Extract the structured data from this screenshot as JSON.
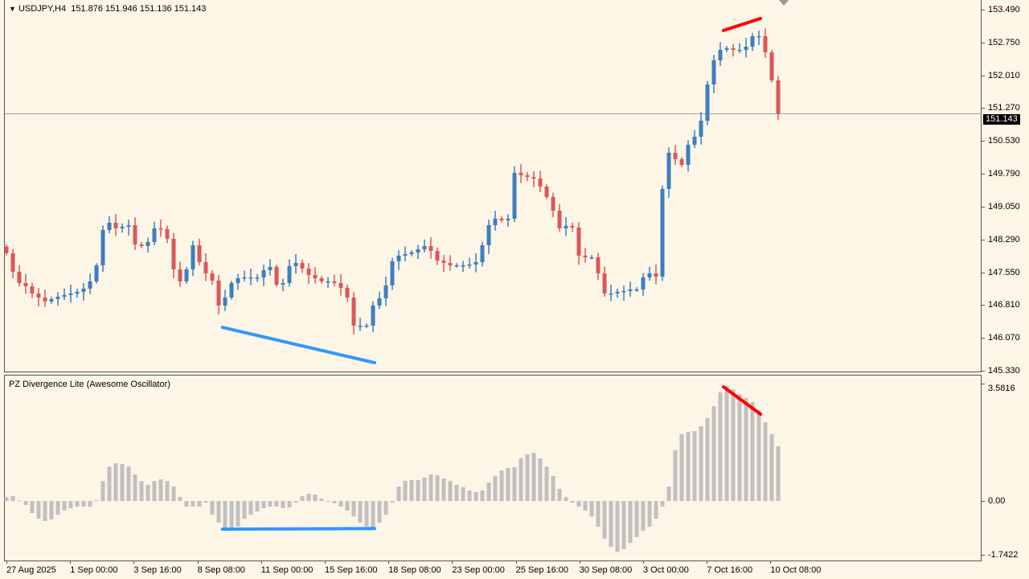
{
  "symbol_header": {
    "arrow_icon": "triangle-down-icon",
    "text": "USDJPY,H4  151.876 151.946 151.136 151.143"
  },
  "indicator_title": "PZ Divergence Lite (Awesome Oscillator)",
  "current_price": "151.143",
  "colors": {
    "background": "#fdf5e6",
    "bull": "#3d7ebf",
    "bear": "#d9585a",
    "bull_divergence": "#2f97ff",
    "bear_divergence": "#ff0000",
    "histogram": "#c0c0c0",
    "price_line": "#a0a0a0"
  },
  "price_axis": {
    "labels": [
      "153.490",
      "152.750",
      "152.010",
      "151.270",
      "150.530",
      "149.790",
      "149.050",
      "148.290",
      "147.550",
      "146.810",
      "146.070",
      "145.330"
    ],
    "range": [
      145.33,
      153.49
    ]
  },
  "ao_axis": {
    "labels": [
      "3.5816",
      "0.00",
      "-1.7422"
    ],
    "range": [
      -1.7422,
      3.5816
    ]
  },
  "time_axis": [
    "27 Aug 2025",
    "1 Sep 00:00",
    "3 Sep 16:00",
    "8 Sep 08:00",
    "11 Sep 00:00",
    "15 Sep 16:00",
    "18 Sep 08:00",
    "23 Sep 00:00",
    "25 Sep 16:00",
    "30 Sep 08:00",
    "3 Oct 00:00",
    "7 Oct 16:00",
    "10 Oct 08:00"
  ],
  "chart_data": {
    "type": "candlestick",
    "closes": [
      147.984,
      147.567,
      147.312,
      147.24,
      147.076,
      146.985,
      146.894,
      146.949,
      147.003,
      147.04,
      147.076,
      147.112,
      147.185,
      147.349,
      147.712,
      148.511,
      148.675,
      148.548,
      148.584,
      148.62,
      148.184,
      148.148,
      148.239,
      148.548,
      148.53,
      148.312,
      147.621,
      147.349,
      147.621,
      148.166,
      147.784,
      147.53,
      147.367,
      146.803,
      146.985,
      147.312,
      147.421,
      147.439,
      147.439,
      147.439,
      147.603,
      147.676,
      147.276,
      147.312,
      147.694,
      147.766,
      147.639,
      147.494,
      147.421,
      147.349,
      147.349,
      147.312,
      147.203,
      146.985,
      146.349,
      146.349,
      146.349,
      146.803,
      146.967,
      147.258,
      147.803,
      147.93,
      147.966,
      148.003,
      148.075,
      148.148,
      148.039,
      147.821,
      147.766,
      147.712,
      147.712,
      147.712,
      147.73,
      147.784,
      148.166,
      148.62,
      148.766,
      148.729,
      148.766,
      149.802,
      149.747,
      149.711,
      149.674,
      149.492,
      149.256,
      148.947,
      148.548,
      148.602,
      148.566,
      147.93,
      147.894,
      147.894,
      147.53,
      147.076,
      147.076,
      147.112,
      147.13,
      147.167,
      147.167,
      147.439,
      147.53,
      147.458,
      149.438,
      150.256,
      150.11,
      149.983,
      150.437,
      150.619,
      150.982,
      151.8,
      152.345,
      152.582,
      152.618,
      152.582,
      152.582,
      152.654,
      152.89,
      152.89,
      152.527,
      151.891,
      151.143
    ],
    "ao_values": [
      0.12,
      0.15,
      0.02,
      -0.12,
      -0.37,
      -0.54,
      -0.61,
      -0.56,
      -0.42,
      -0.29,
      -0.22,
      -0.17,
      -0.17,
      -0.17,
      0.02,
      0.61,
      1.05,
      1.15,
      1.13,
      1.05,
      0.81,
      0.61,
      0.49,
      0.61,
      0.66,
      0.61,
      0.44,
      0.12,
      -0.17,
      -0.17,
      -0.17,
      -0.05,
      -0.42,
      -0.66,
      -0.91,
      -0.91,
      -0.78,
      -0.54,
      -0.42,
      -0.32,
      -0.22,
      -0.17,
      -0.17,
      -0.22,
      -0.2,
      -0.05,
      0.15,
      0.22,
      0.2,
      0.07,
      -0.02,
      -0.07,
      -0.17,
      -0.29,
      -0.47,
      -0.66,
      -0.78,
      -0.81,
      -0.66,
      -0.42,
      -0.05,
      0.44,
      0.61,
      0.64,
      0.64,
      0.71,
      0.81,
      0.78,
      0.69,
      0.61,
      0.49,
      0.42,
      0.32,
      0.27,
      0.32,
      0.56,
      0.76,
      0.93,
      1.01,
      1.03,
      1.3,
      1.42,
      1.47,
      1.3,
      1.05,
      0.76,
      0.37,
      0.12,
      -0.05,
      -0.17,
      -0.29,
      -0.47,
      -0.78,
      -1.15,
      -1.4,
      -1.55,
      -1.47,
      -1.28,
      -1.1,
      -0.91,
      -0.78,
      -0.54,
      -0.17,
      0.44,
      1.55,
      2.04,
      2.11,
      2.13,
      2.28,
      2.53,
      2.89,
      3.31,
      3.51,
      3.41,
      3.26,
      3.14,
      3.02,
      2.77,
      2.4,
      2.04,
      1.67
    ],
    "divergences": [
      {
        "kind": "bullish",
        "price": [
          [
            33.6,
            146.31
          ],
          [
            57.25,
            145.51
          ]
        ],
        "ao": [
          [
            33.6,
            -0.86
          ],
          [
            57.25,
            -0.84
          ]
        ]
      },
      {
        "kind": "bearish",
        "price": [
          [
            111.5,
            153.02
          ],
          [
            117.25,
            153.29
          ]
        ],
        "ao": [
          [
            111.5,
            3.48
          ],
          [
            117.25,
            2.65
          ]
        ]
      }
    ]
  }
}
